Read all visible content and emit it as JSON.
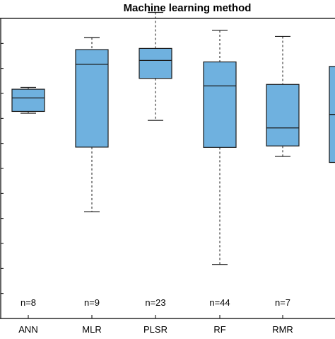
{
  "chart_data": {
    "type": "box",
    "title": "Machine learning method",
    "xlabel": "",
    "ylabel": "",
    "grid": false,
    "legend": "none",
    "categories": [
      "ANN",
      "MLR",
      "PLSR",
      "RF",
      "RMR",
      ""
    ],
    "counts": [
      "n=8",
      "n=9",
      "n=23",
      "n=44",
      "n=7",
      ""
    ],
    "y_units": "relative (unlabeled axis, 0 = bottom of plot, 100 = top)",
    "boxes": [
      {
        "whisker_low": 68.4,
        "q1": 69.0,
        "median": 73.5,
        "q3": 76.4,
        "whisker_high": 77.0
      },
      {
        "whisker_low": 35.6,
        "q1": 57.1,
        "median": 84.7,
        "q3": 89.6,
        "whisker_high": 93.6
      },
      {
        "whisker_low": 66.0,
        "q1": 80.0,
        "median": 86.0,
        "q3": 90.0,
        "whisker_high": 102.0
      },
      {
        "whisker_low": 18.0,
        "q1": 57.0,
        "median": 77.5,
        "q3": 85.5,
        "whisker_high": 96.0
      },
      {
        "whisker_low": 54.0,
        "q1": 57.5,
        "median": 63.5,
        "q3": 78.0,
        "whisker_high": 94.0
      },
      {
        "whisker_low": 52.0,
        "q1": 52.0,
        "median": 68.0,
        "q3": 84.0,
        "whisker_high": 84.0
      }
    ],
    "colors": {
      "box_fill": "#6fb1df",
      "box_stroke": "#1a1a1a",
      "whisker": "#1a1a1a",
      "axis": "#000000",
      "text": "#000000"
    }
  }
}
